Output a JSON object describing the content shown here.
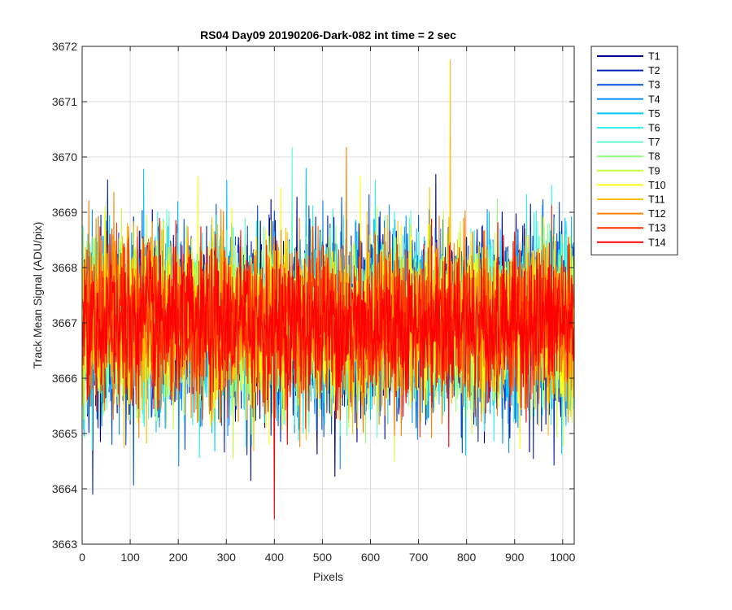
{
  "chart_data": {
    "type": "line",
    "title": "RS04 Day09 20190206-Dark-082 int time = 2 sec",
    "xlabel": "Pixels",
    "ylabel": "Track Mean Signal (ADU/pix)",
    "xlim": [
      0,
      1024
    ],
    "ylim": [
      3663,
      3672
    ],
    "xticks": [
      0,
      100,
      200,
      300,
      400,
      500,
      600,
      700,
      800,
      900,
      1000
    ],
    "yticks": [
      3663,
      3664,
      3665,
      3666,
      3667,
      3668,
      3669,
      3670,
      3671,
      3672
    ],
    "grid": true,
    "legend_position": "outside-top-right",
    "series": [
      {
        "name": "T1",
        "color": "#00008f",
        "mean": 3667.0,
        "sd": 1.05
      },
      {
        "name": "T2",
        "color": "#0020b0",
        "mean": 3667.0,
        "sd": 1.05
      },
      {
        "name": "T3",
        "color": "#0050e0",
        "mean": 3667.0,
        "sd": 1.0
      },
      {
        "name": "T4",
        "color": "#1090ff",
        "mean": 3667.0,
        "sd": 1.0
      },
      {
        "name": "T5",
        "color": "#00c8ff",
        "mean": 3667.0,
        "sd": 1.0
      },
      {
        "name": "T6",
        "color": "#30f0f0",
        "mean": 3667.0,
        "sd": 1.0
      },
      {
        "name": "T7",
        "color": "#60ffc8",
        "mean": 3667.0,
        "sd": 0.95
      },
      {
        "name": "T8",
        "color": "#90ff80",
        "mean": 3667.0,
        "sd": 0.95
      },
      {
        "name": "T9",
        "color": "#c8ff40",
        "mean": 3667.0,
        "sd": 0.95
      },
      {
        "name": "T10",
        "color": "#ffff10",
        "mean": 3667.0,
        "sd": 0.95
      },
      {
        "name": "T11",
        "color": "#ffc000",
        "mean": 3667.0,
        "sd": 0.95
      },
      {
        "name": "T12",
        "color": "#ff8000",
        "mean": 3667.0,
        "sd": 0.95
      },
      {
        "name": "T13",
        "color": "#ff3000",
        "mean": 3667.0,
        "sd": 0.9
      },
      {
        "name": "T14",
        "color": "#ff0000",
        "mean": 3667.0,
        "sd": 0.85
      }
    ],
    "notes_points": {
      "T11_spike": {
        "x": 766,
        "y": 3671.75
      },
      "T14_min": {
        "x": 400,
        "y": 3663.45
      }
    }
  }
}
